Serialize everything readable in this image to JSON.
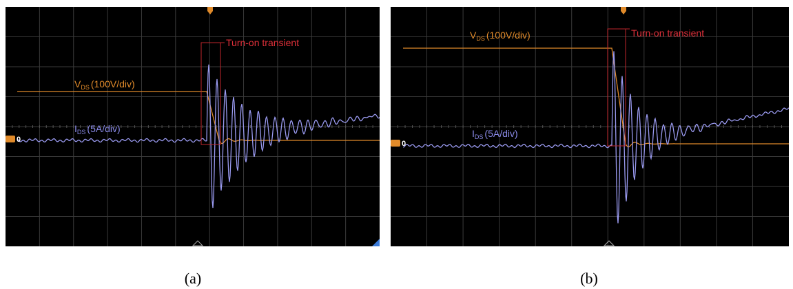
{
  "panels": [
    {
      "annotation": "Turn-on transient",
      "vds_label": {
        "symbol": "V",
        "subscript": "DS",
        "scale": "(100V/div)"
      },
      "ids_label": {
        "symbol": "I",
        "subscript": "DS",
        "scale": "(5A/div)"
      },
      "channel_marker": "0",
      "caption": "(a)"
    },
    {
      "annotation": "Turn-on transient",
      "vds_label": {
        "symbol": "V",
        "subscript": "DS",
        "scale": "(100V/div)"
      },
      "ids_label": {
        "symbol": "I",
        "subscript": "DS",
        "scale": "(5A/div)"
      },
      "channel_marker": "0",
      "caption": "(b)"
    }
  ]
}
